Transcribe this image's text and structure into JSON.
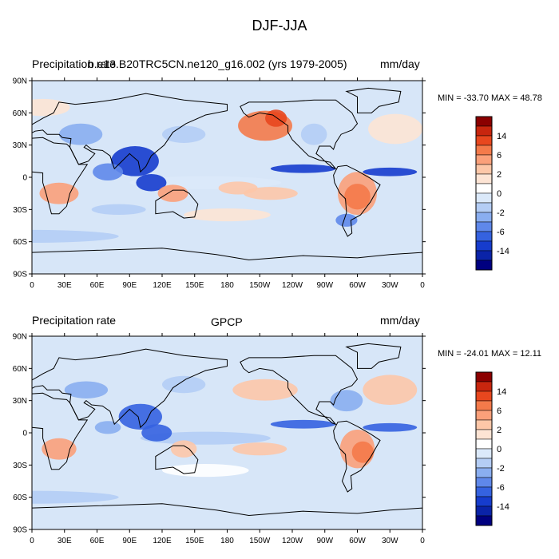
{
  "figure": {
    "title": "DJF-JJA"
  },
  "panels": [
    {
      "left_label": "Precipitation rate",
      "center_label": "b.e13.B20TRC5CN.ne120_g16.002 (yrs 1979-2005)",
      "right_label": "mm/day",
      "minmax": "MIN = -33.70 MAX =  48.78"
    },
    {
      "left_label": "Precipitation rate",
      "center_label": "GPCP",
      "right_label": "mm/day",
      "minmax": "MIN = -24.01 MAX =  12.11"
    }
  ],
  "axes": {
    "lat_labels": [
      "90N",
      "60N",
      "30N",
      "0",
      "30S",
      "60S",
      "90S"
    ],
    "lon_labels": [
      "0",
      "30E",
      "60E",
      "90E",
      "120E",
      "150E",
      "180",
      "150W",
      "120W",
      "90W",
      "60W",
      "30W",
      "0"
    ]
  },
  "colorbar": {
    "labels": [
      "14",
      "6",
      "2",
      "0",
      "-2",
      "-6",
      "-14"
    ],
    "colors": [
      "#8b0000",
      "#c8260e",
      "#e8471e",
      "#f47a4a",
      "#fba07a",
      "#fdc7a8",
      "#fde4d4",
      "#ffffff",
      "#dbe9fa",
      "#b4cdf5",
      "#8aaef0",
      "#5f88ea",
      "#3562e0",
      "#163ccd",
      "#0a23a8",
      "#000080"
    ]
  },
  "palette": {
    "background_ocean": "#d7e6f8",
    "coast": "#000000"
  }
}
